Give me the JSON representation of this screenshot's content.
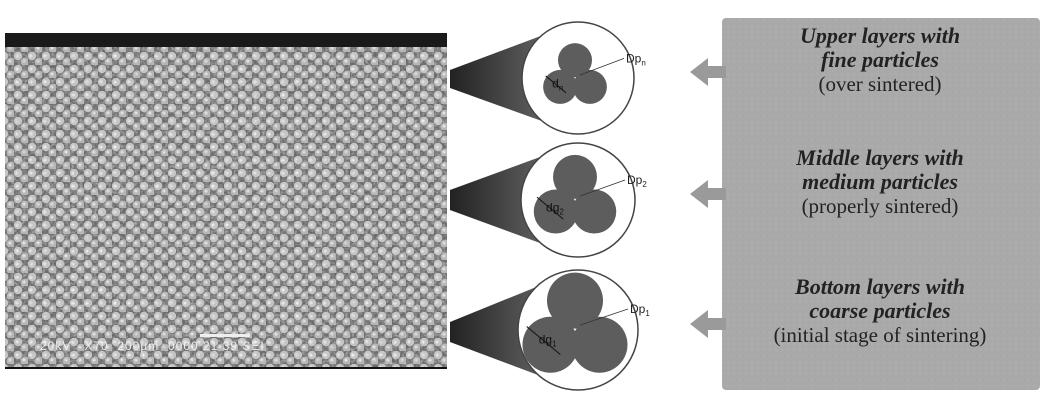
{
  "sem_caption": "20kV   X70  200µm  0000 21 39 SEI",
  "layers": [
    {
      "title_line1": "Upper layers with",
      "title_line2": "fine particles",
      "note": "(over sintered)",
      "diameter_label": {
        "base": "Dp",
        "sub": "n"
      },
      "neck_label": {
        "base": "d",
        "sub": "n"
      }
    },
    {
      "title_line1": "Middle layers with",
      "title_line2": "medium particles",
      "note": "(properly sintered)",
      "diameter_label": {
        "base": "Dp",
        "sub": "2"
      },
      "neck_label": {
        "base": "dg",
        "sub": "2"
      }
    },
    {
      "title_line1": "Bottom layers with",
      "title_line2": "coarse particles",
      "note": "(initial stage of sintering)",
      "diameter_label": {
        "base": "Dp",
        "sub": "1"
      },
      "neck_label": {
        "base": "dg",
        "sub": "1"
      }
    }
  ]
}
